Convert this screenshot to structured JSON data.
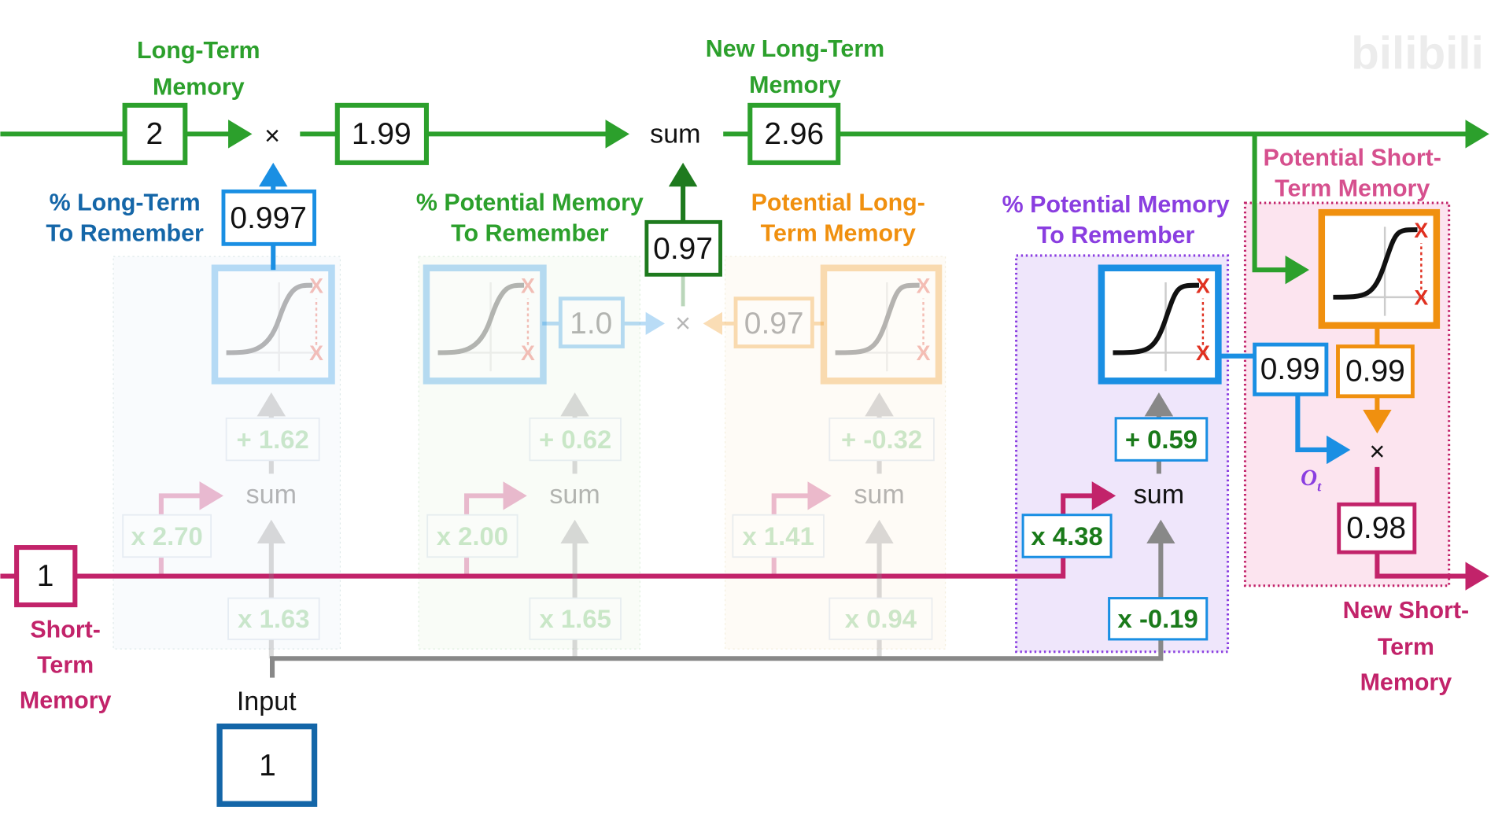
{
  "labels": {
    "long_term_memory": [
      "Long-Term",
      "Memory"
    ],
    "new_long_term_memory": [
      "New Long-Term",
      "Memory"
    ],
    "pct_long_term": [
      "% Long-Term",
      "To Remember"
    ],
    "pct_potential_green": [
      "% Potential Memory",
      "To Remember"
    ],
    "potential_long_term": [
      "Potential Long-",
      "Term Memory"
    ],
    "pct_potential_purple": [
      "% Potential Memory",
      "To Remember"
    ],
    "potential_short_term": [
      "Potential Short-",
      "Term Memory"
    ],
    "short_term_memory": [
      "Short-",
      "Term",
      "Memory"
    ],
    "new_short_term_memory": [
      "New Short-",
      "Term",
      "Memory"
    ],
    "input": "Input",
    "output_gate_symbol": "O",
    "output_gate_sub": "t",
    "watermark": "bilibili"
  },
  "operators": {
    "multiply": "×",
    "sum": "sum"
  },
  "values": {
    "long_term_in": "2",
    "long_term_scaled": "1.99",
    "new_long_term": "2.96",
    "forget_gate": "0.997",
    "input_gate_product": "0.97",
    "input_gate_pct": "1.0",
    "potential_lt": "0.97",
    "output_gate_pct": "0.99",
    "potential_st": "0.99",
    "new_short_term": "0.98",
    "short_term_in": "1",
    "input_in": "1"
  },
  "stages": [
    {
      "bias": "+ 1.62",
      "w_short": "x 2.70",
      "w_input": "x 1.63",
      "active": false
    },
    {
      "bias": "+ 0.62",
      "w_short": "x 2.00",
      "w_input": "x 1.65",
      "active": false
    },
    {
      "bias": "+ -0.32",
      "w_short": "x 1.41",
      "w_input": "x 0.94",
      "active": false
    },
    {
      "bias": "+ 0.59",
      "w_short": "x 4.38",
      "w_input": "x -0.19",
      "active": true
    }
  ],
  "colors": {
    "green": "#2ca02c",
    "blue": "#1a8fe3",
    "darkblue": "#1466a8",
    "pink": "#c2236a",
    "purple": "#8a3ee0",
    "orange": "#f0900f",
    "gray": "#888888",
    "red": "#e03020"
  }
}
